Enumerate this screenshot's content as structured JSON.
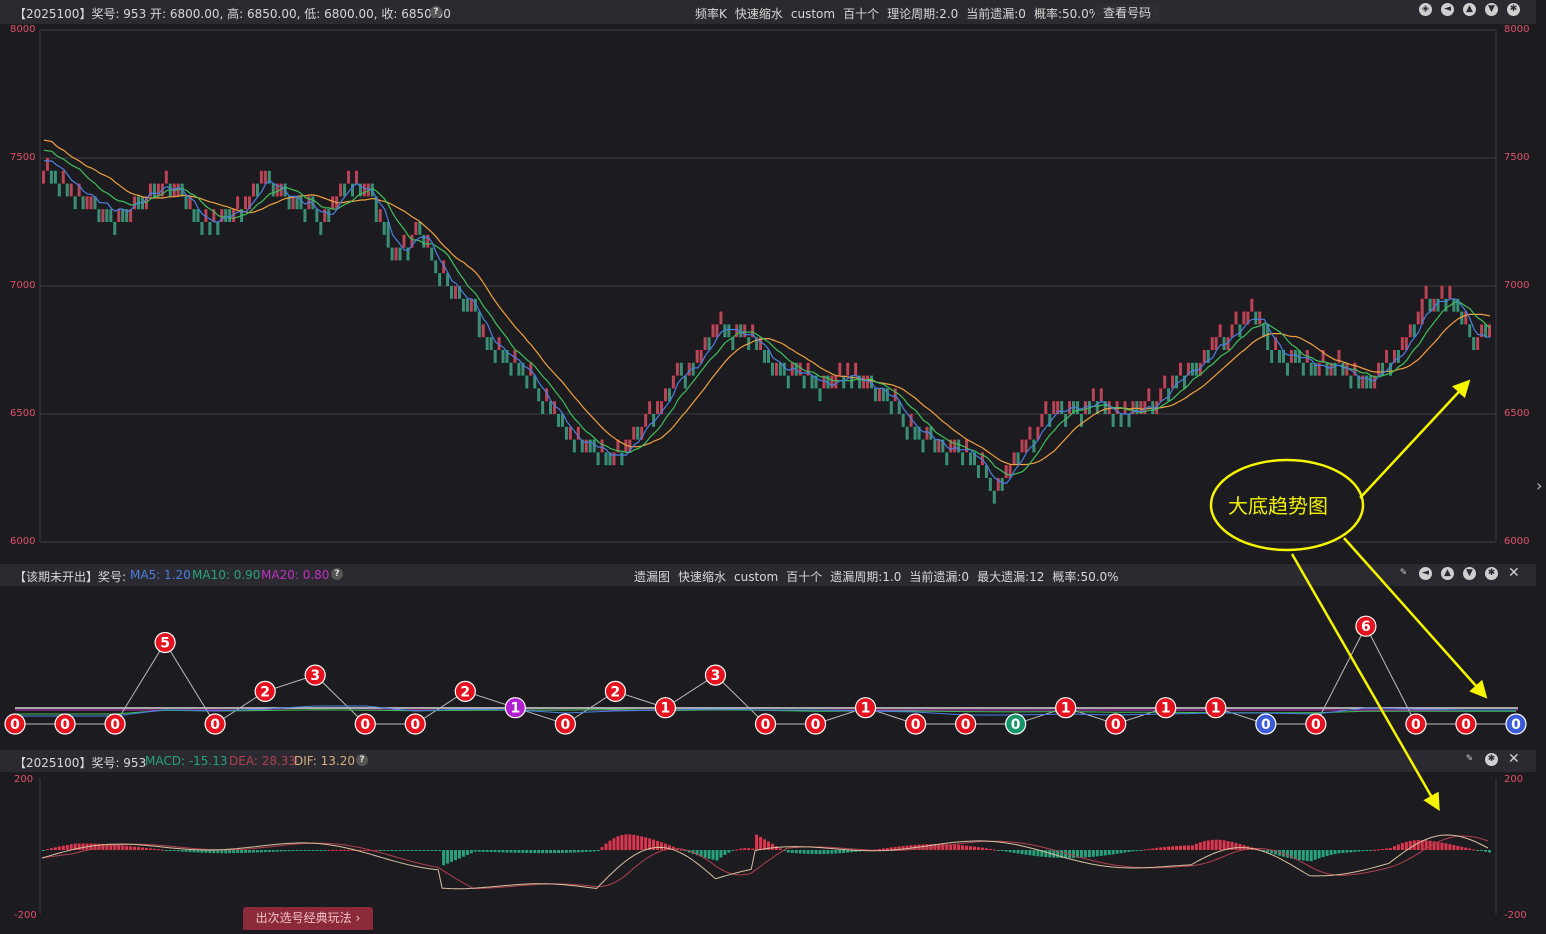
{
  "colors": {
    "up": "#e0354f",
    "down": "#26a27d",
    "ma5": "#4a7fe0",
    "ma10": "#3fbf5a",
    "ma20": "#f0a040",
    "axis": "#e0506a",
    "annotation": "#f5f500"
  },
  "top_bar": {
    "info": "【2025100】奖号: 953   开: 6800.00, 高: 6850.00, 低: 6800.00, 收: 6850.00",
    "help_icon": "question-icon",
    "params": [
      "频率K",
      "快速缩水",
      "custom",
      "百十个",
      "理论周期:2.0",
      "当前遗漏:0",
      "概率:50.0%"
    ],
    "view_button": "查看号码",
    "icons": [
      "compass-icon",
      "back-icon",
      "up-icon",
      "down-icon",
      "gear-icon"
    ]
  },
  "main_axis": {
    "labels": [
      "8000",
      "7500",
      "7000",
      "6500",
      "6000"
    ]
  },
  "annotation": {
    "text": "大底趋势图"
  },
  "mid_bar": {
    "info_prefix": "【该期未开出】奖号:",
    "ma5": "MA5: 1.20",
    "ma10": "MA10: 0.90",
    "ma20": "MA20: 0.80",
    "params": [
      "遗漏图",
      "快速缩水",
      "custom",
      "百十个",
      "遗漏周期:1.0",
      "当前遗漏:0",
      "最大遗漏:12",
      "概率:50.0%"
    ],
    "icons": [
      "pin-icon",
      "back-icon",
      "up-icon",
      "down-icon",
      "gear-icon",
      "close-icon"
    ]
  },
  "miss_values": [
    "0",
    "0",
    "0",
    "5",
    "0",
    "2",
    "3",
    "0",
    "0",
    "2",
    "1",
    "0",
    "2",
    "1",
    "3",
    "0",
    "0",
    "1",
    "0",
    "0",
    "0",
    "1",
    "0",
    "1",
    "1",
    "0",
    "0",
    "6",
    "0",
    "0",
    "0"
  ],
  "miss_colors": [
    "r",
    "r",
    "r",
    "r",
    "r",
    "r",
    "r",
    "r",
    "r",
    "r",
    "p",
    "r",
    "r",
    "r",
    "r",
    "r",
    "r",
    "r",
    "r",
    "r",
    "g",
    "r",
    "r",
    "r",
    "r",
    "b",
    "r",
    "r",
    "r",
    "r",
    "b"
  ],
  "macd_bar": {
    "info": "【2025100】奖号: 953",
    "macd": "MACD: -15.13",
    "dea": "DEA: 28.33",
    "dif": "DIF: 13.20",
    "icons": [
      "pin-icon",
      "gear-icon",
      "close-icon"
    ]
  },
  "macd_axis": {
    "top": "200",
    "bottom": "-200"
  },
  "bottom_button": "出次选号经典玩法",
  "side_arrow": "›",
  "chart_data": {
    "type": "line",
    "title": "",
    "ylim": [
      6000,
      8000
    ],
    "price_keypoints": [
      [
        0,
        7440
      ],
      [
        10,
        7330
      ],
      [
        16,
        7260
      ],
      [
        22,
        7290
      ],
      [
        30,
        7410
      ],
      [
        36,
        7330
      ],
      [
        42,
        7230
      ],
      [
        50,
        7320
      ],
      [
        56,
        7420
      ],
      [
        64,
        7320
      ],
      [
        70,
        7290
      ],
      [
        76,
        7400
      ],
      [
        82,
        7380
      ],
      [
        88,
        7120
      ],
      [
        94,
        7220
      ],
      [
        100,
        7050
      ],
      [
        106,
        6940
      ],
      [
        112,
        6800
      ],
      [
        118,
        6710
      ],
      [
        124,
        6600
      ],
      [
        130,
        6470
      ],
      [
        136,
        6380
      ],
      [
        142,
        6330
      ],
      [
        150,
        6420
      ],
      [
        158,
        6600
      ],
      [
        164,
        6720
      ],
      [
        170,
        6830
      ],
      [
        176,
        6820
      ],
      [
        182,
        6700
      ],
      [
        190,
        6650
      ],
      [
        198,
        6620
      ],
      [
        206,
        6640
      ],
      [
        214,
        6540
      ],
      [
        222,
        6400
      ],
      [
        230,
        6360
      ],
      [
        236,
        6320
      ],
      [
        240,
        6200
      ],
      [
        246,
        6350
      ],
      [
        252,
        6480
      ],
      [
        258,
        6530
      ],
      [
        266,
        6540
      ],
      [
        274,
        6490
      ],
      [
        282,
        6580
      ],
      [
        290,
        6700
      ],
      [
        298,
        6780
      ],
      [
        304,
        6900
      ],
      [
        310,
        6760
      ],
      [
        318,
        6700
      ],
      [
        326,
        6680
      ],
      [
        334,
        6620
      ],
      [
        340,
        6700
      ],
      [
        348,
        6900
      ],
      [
        354,
        6990
      ],
      [
        360,
        6780
      ],
      [
        365,
        6840
      ]
    ],
    "macd_ylim": [
      -200,
      200
    ]
  }
}
